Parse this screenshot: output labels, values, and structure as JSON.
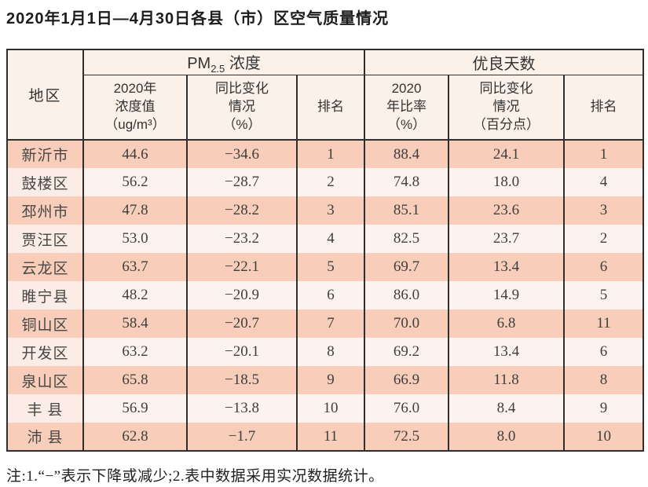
{
  "title": "2020年1月1日—4月30日各县（市）区空气质量情况",
  "table": {
    "region_header": "地区",
    "group_headers": {
      "pm25": {
        "prefix": "PM",
        "sub": "2.5",
        "suffix": " 浓度"
      },
      "good_days": "优良天数"
    },
    "sub_headers": {
      "pm25_value": "2020年\n浓度值\n（ug/m³）",
      "pm25_change": "同比变化\n情况\n（%）",
      "pm25_rank": "排名",
      "good_ratio": "2020\n年比率\n（%）",
      "good_change": "同比变化\n情况\n（百分点）",
      "good_rank": "排名"
    },
    "rows": [
      {
        "region": "新沂市",
        "pm25_value": "44.6",
        "pm25_change": "−34.6",
        "pm25_rank": "1",
        "good_ratio": "88.4",
        "good_change": "24.1",
        "good_rank": "1"
      },
      {
        "region": "鼓楼区",
        "pm25_value": "56.2",
        "pm25_change": "−28.7",
        "pm25_rank": "2",
        "good_ratio": "74.8",
        "good_change": "18.0",
        "good_rank": "4"
      },
      {
        "region": "邳州市",
        "pm25_value": "47.8",
        "pm25_change": "−28.2",
        "pm25_rank": "3",
        "good_ratio": "85.1",
        "good_change": "23.6",
        "good_rank": "3"
      },
      {
        "region": "贾汪区",
        "pm25_value": "53.0",
        "pm25_change": "−23.2",
        "pm25_rank": "4",
        "good_ratio": "82.5",
        "good_change": "23.7",
        "good_rank": "2"
      },
      {
        "region": "云龙区",
        "pm25_value": "63.7",
        "pm25_change": "−22.1",
        "pm25_rank": "5",
        "good_ratio": "69.7",
        "good_change": "13.4",
        "good_rank": "6"
      },
      {
        "region": "睢宁县",
        "pm25_value": "48.2",
        "pm25_change": "−20.9",
        "pm25_rank": "6",
        "good_ratio": "86.0",
        "good_change": "14.9",
        "good_rank": "5"
      },
      {
        "region": "铜山区",
        "pm25_value": "58.4",
        "pm25_change": "−20.7",
        "pm25_rank": "7",
        "good_ratio": "70.0",
        "good_change": "6.8",
        "good_rank": "11"
      },
      {
        "region": "开发区",
        "pm25_value": "63.2",
        "pm25_change": "−20.1",
        "pm25_rank": "8",
        "good_ratio": "69.2",
        "good_change": "13.4",
        "good_rank": "6"
      },
      {
        "region": "泉山区",
        "pm25_value": "65.8",
        "pm25_change": "−18.5",
        "pm25_rank": "9",
        "good_ratio": "66.9",
        "good_change": "11.8",
        "good_rank": "8"
      },
      {
        "region": "丰 县",
        "pm25_value": "56.9",
        "pm25_change": "−13.8",
        "pm25_rank": "10",
        "good_ratio": "76.0",
        "good_change": "8.4",
        "good_rank": "9"
      },
      {
        "region": "沛 县",
        "pm25_value": "62.8",
        "pm25_change": "−1.7",
        "pm25_rank": "11",
        "good_ratio": "72.5",
        "good_change": "8.0",
        "good_rank": "10"
      }
    ]
  },
  "footnote": "注:1.“−”表示下降或减少;2.表中数据采用实况数据统计。",
  "colors": {
    "row_salmon": "#f8cdb9",
    "row_light": "#fdf3ee",
    "row_light_region": "#fbece5",
    "header_bg": "#fcf1e8",
    "border": "#2f2f2f"
  }
}
